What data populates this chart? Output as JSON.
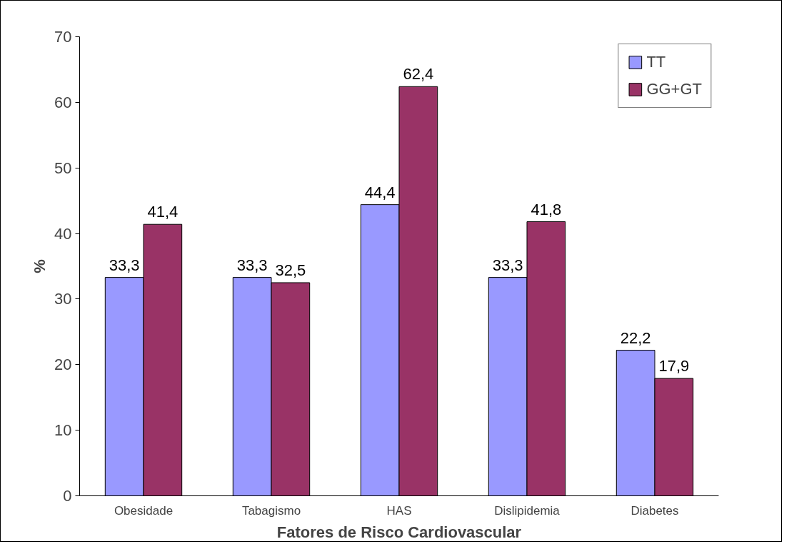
{
  "chart_data": {
    "type": "bar",
    "xlabel": "Fatores de Risco Cardiovascular",
    "ylabel": "%",
    "categories": [
      "Obesidade",
      "Tabagismo",
      "HAS",
      "Dislipidemia",
      "Diabetes"
    ],
    "series": [
      {
        "name": "TT",
        "color": "#9999ff",
        "values": [
          33.3,
          33.3,
          44.4,
          33.3,
          22.2
        ],
        "value_labels": [
          "33,3",
          "33,3",
          "44,4",
          "33,3",
          "22,2"
        ]
      },
      {
        "name": "GG+GT",
        "color": "#993366",
        "values": [
          41.4,
          32.5,
          62.4,
          41.8,
          17.9
        ],
        "value_labels": [
          "41,4",
          "32,5",
          "62,4",
          "41,8",
          "17,9"
        ]
      }
    ],
    "ylim": [
      0,
      70
    ],
    "yticks": [
      0,
      10,
      20,
      30,
      40,
      50,
      60,
      70
    ],
    "grid": false,
    "legend": "top right"
  }
}
